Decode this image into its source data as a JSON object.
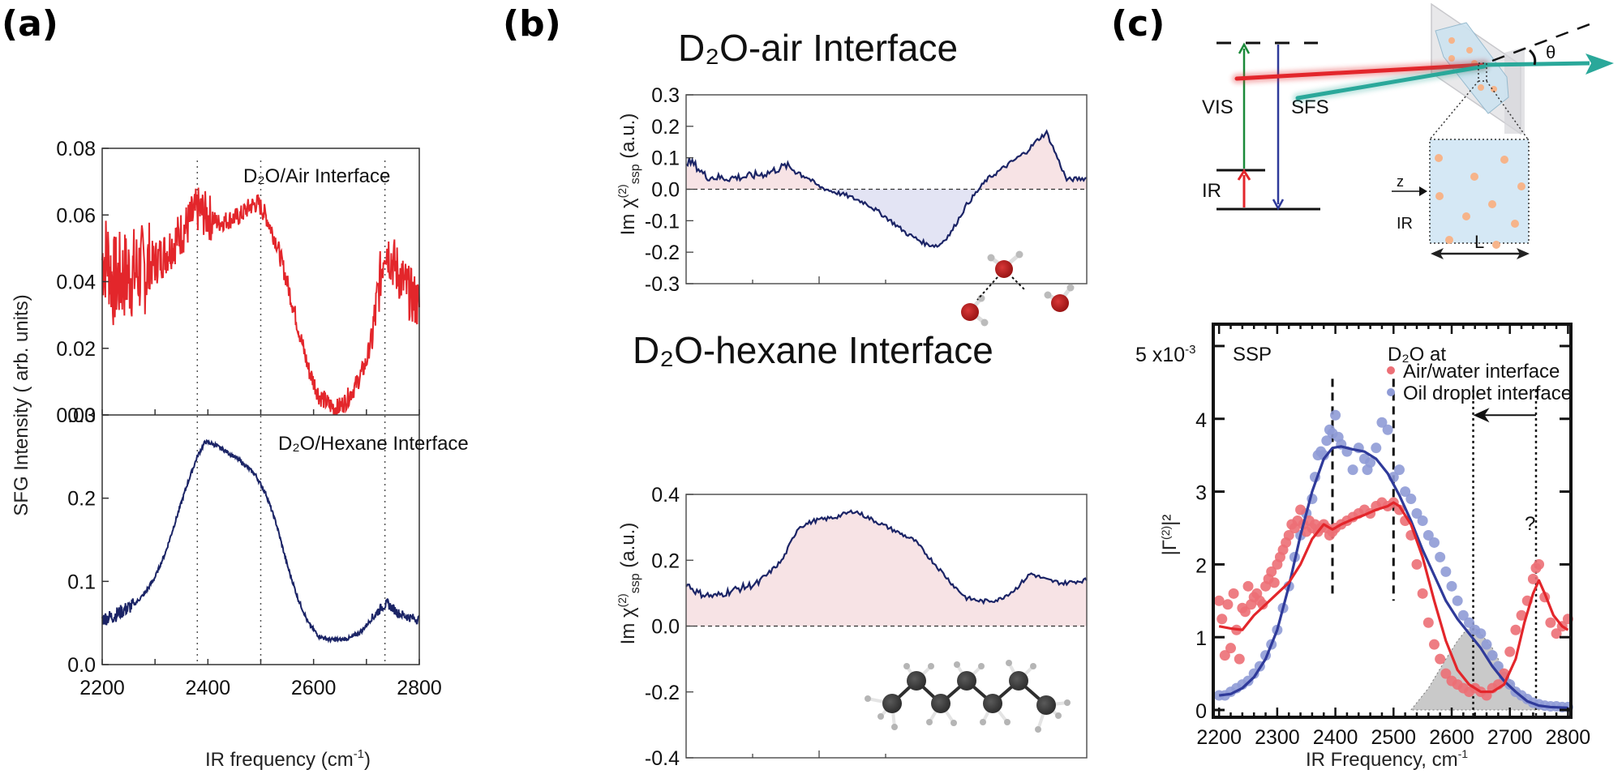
{
  "panel_labels": {
    "a": "(a)",
    "b": "(b)",
    "c": "(c)"
  },
  "colors": {
    "red_series": "#e3262b",
    "navy_series": "#1b2466",
    "pink_fill": "#f7e3e5",
    "lavender_fill": "#e3e4f4",
    "red_points": "#ec6f76",
    "blue_points": "#8f9bd6",
    "red_fit": "#e3262b",
    "blue_fit": "#2f3a9a",
    "gray_area": "#c9c9c9"
  },
  "panel_a": {
    "ylabel": "SFG Intensity ( arb. units)",
    "xlabel": "IR frequency (cm",
    "xlabel_sup": "-1",
    "xlabel_close": ")",
    "x_ticks": [
      "2200",
      "2400",
      "2600",
      "2800"
    ],
    "top": {
      "annotation": "D₂O/Air Interface",
      "y_ticks": [
        "0.00",
        "0.02",
        "0.04",
        "0.06",
        "0.08"
      ]
    },
    "bottom": {
      "annotation": "D₂O/Hexane Interface",
      "y_ticks": [
        "0.0",
        "0.1",
        "0.2",
        "0.3"
      ]
    }
  },
  "panel_b": {
    "ylabel_prefix": "Im χ",
    "ylabel_sup": "(2)",
    "ylabel_sub": "ssp",
    "ylabel_suffix": " (a.u.)",
    "top": {
      "title": "D₂O-air  Interface",
      "y_ticks": [
        "0.3",
        "0.2",
        "0.1",
        "0.0",
        "-0.1",
        "-0.2",
        "-0.3"
      ]
    },
    "bottom": {
      "title": "D₂O-hexane  Interface",
      "y_ticks": [
        "0.4",
        "0.2",
        "0.0",
        "-0.2",
        "-0.4"
      ]
    },
    "molecule_top": "water-molecules-illustration",
    "molecule_bottom": "hexane-molecule-illustration"
  },
  "panel_c": {
    "energy_diagram": {
      "vis": "VIS",
      "sfs": "SFS",
      "ir": "IR"
    },
    "setup": {
      "theta": "θ",
      "z": "z",
      "ir": "IR",
      "length": "L"
    },
    "plot": {
      "polarization": "SSP",
      "legend_title": "D₂O at",
      "legend": [
        "Air/water interface",
        "Oil droplet interface"
      ],
      "y_scale": "5 x10",
      "y_scale_sup": "-3",
      "y_ticks": [
        "0",
        "1",
        "2",
        "3",
        "4"
      ],
      "x_ticks": [
        "2200",
        "2300",
        "2400",
        "2500",
        "2600",
        "2700",
        "2800"
      ],
      "xlabel": "IR Frequency, cm",
      "xlabel_sup": "-1",
      "ylabel": "|Γ",
      "ylabel_sup": "(2)",
      "ylabel_end": "|²",
      "question": "?"
    }
  },
  "chart_data": [
    {
      "id": "a-top",
      "type": "line",
      "title": "D₂O/Air Interface",
      "xlabel": "IR frequency (cm-1)",
      "ylabel": "SFG Intensity (arb. units)",
      "xlim": [
        2200,
        2800
      ],
      "ylim": [
        0.0,
        0.08
      ],
      "vlines": [
        2380,
        2500,
        2735
      ],
      "series": [
        {
          "name": "D2O/Air",
          "color": "#e3262b",
          "noise": 0.006,
          "x": [
            2200,
            2210,
            2220,
            2240,
            2260,
            2280,
            2300,
            2320,
            2340,
            2360,
            2380,
            2400,
            2420,
            2440,
            2460,
            2480,
            2495,
            2510,
            2530,
            2550,
            2570,
            2590,
            2610,
            2630,
            2645,
            2660,
            2680,
            2700,
            2715,
            2725,
            2735,
            2745,
            2760,
            2780,
            2800
          ],
          "y": [
            0.047,
            0.048,
            0.04,
            0.042,
            0.043,
            0.044,
            0.046,
            0.049,
            0.053,
            0.057,
            0.062,
            0.06,
            0.058,
            0.059,
            0.06,
            0.063,
            0.064,
            0.06,
            0.052,
            0.04,
            0.027,
            0.014,
            0.006,
            0.003,
            0.002,
            0.004,
            0.009,
            0.016,
            0.028,
            0.04,
            0.052,
            0.048,
            0.043,
            0.037,
            0.033
          ]
        }
      ]
    },
    {
      "id": "a-bottom",
      "type": "line",
      "title": "D₂O/Hexane Interface",
      "xlim": [
        2200,
        2800
      ],
      "ylim": [
        0.0,
        0.3
      ],
      "vlines": [
        2380,
        2500,
        2735
      ],
      "series": [
        {
          "name": "D2O/Hexane",
          "color": "#1b2466",
          "noise": 0.004,
          "x": [
            2200,
            2220,
            2240,
            2260,
            2280,
            2300,
            2320,
            2340,
            2360,
            2380,
            2395,
            2410,
            2430,
            2450,
            2470,
            2490,
            2510,
            2530,
            2550,
            2570,
            2590,
            2610,
            2630,
            2650,
            2670,
            2690,
            2710,
            2730,
            2740,
            2760,
            2780,
            2800
          ],
          "y": [
            0.055,
            0.058,
            0.065,
            0.072,
            0.085,
            0.105,
            0.135,
            0.175,
            0.215,
            0.25,
            0.268,
            0.265,
            0.258,
            0.25,
            0.24,
            0.228,
            0.205,
            0.168,
            0.12,
            0.08,
            0.05,
            0.034,
            0.03,
            0.03,
            0.032,
            0.04,
            0.055,
            0.07,
            0.073,
            0.062,
            0.057,
            0.054
          ]
        }
      ]
    },
    {
      "id": "b-top",
      "type": "area",
      "title": "D₂O-air Interface",
      "ylabel": "Im χ(2) ssp (a.u.)",
      "ylim": [
        -0.3,
        0.3
      ],
      "xlim": [
        0,
        1
      ],
      "series": [
        {
          "name": "Im chi2 D2O-air",
          "color": "#1b2466",
          "noise": 0.01,
          "x": [
            0.0,
            0.02,
            0.05,
            0.1,
            0.15,
            0.2,
            0.25,
            0.3,
            0.33,
            0.36,
            0.4,
            0.45,
            0.5,
            0.55,
            0.6,
            0.63,
            0.66,
            0.7,
            0.75,
            0.8,
            0.85,
            0.88,
            0.9,
            0.92,
            0.95,
            1.0
          ],
          "y": [
            0.09,
            0.08,
            0.04,
            0.035,
            0.04,
            0.05,
            0.075,
            0.04,
            0.01,
            -0.005,
            -0.02,
            -0.045,
            -0.09,
            -0.14,
            -0.175,
            -0.18,
            -0.14,
            -0.05,
            0.03,
            0.075,
            0.12,
            0.16,
            0.18,
            0.12,
            0.03,
            0.035
          ]
        }
      ]
    },
    {
      "id": "b-bottom",
      "type": "area",
      "title": "D₂O-hexane Interface",
      "ylabel": "Im χ(2) ssp (a.u.)",
      "ylim": [
        -0.4,
        0.4
      ],
      "xlim": [
        0,
        1
      ],
      "series": [
        {
          "name": "Im chi2 D2O-hexane",
          "color": "#1b2466",
          "noise": 0.008,
          "x": [
            0.0,
            0.03,
            0.07,
            0.12,
            0.18,
            0.24,
            0.28,
            0.32,
            0.37,
            0.42,
            0.47,
            0.52,
            0.57,
            0.62,
            0.67,
            0.7,
            0.74,
            0.78,
            0.82,
            0.86,
            0.9,
            0.94,
            1.0
          ],
          "y": [
            0.13,
            0.1,
            0.09,
            0.11,
            0.13,
            0.2,
            0.3,
            0.32,
            0.33,
            0.35,
            0.32,
            0.29,
            0.26,
            0.19,
            0.12,
            0.085,
            0.075,
            0.08,
            0.11,
            0.16,
            0.14,
            0.13,
            0.14
          ]
        }
      ]
    },
    {
      "id": "c",
      "type": "scatter",
      "xlabel": "IR Frequency, cm-1",
      "ylabel": "|Γ(2)|²",
      "xlim": [
        2190,
        2805
      ],
      "ylim": [
        -0.1,
        5.3
      ],
      "y_units": "x10^-3",
      "vlines_dashed": [
        2395,
        2500
      ],
      "vlines_dotted": [
        2637,
        2745
      ],
      "arrow": {
        "from": 2745,
        "to": 2637,
        "y": 4.05,
        "label": "?"
      },
      "series": [
        {
          "name": "Air/water interface",
          "color": "#ec6f76",
          "fit_color": "#e3262b",
          "points_x": [
            2200,
            2205,
            2210,
            2215,
            2220,
            2225,
            2230,
            2235,
            2240,
            2245,
            2250,
            2255,
            2260,
            2265,
            2270,
            2275,
            2280,
            2285,
            2290,
            2295,
            2300,
            2305,
            2310,
            2315,
            2320,
            2325,
            2330,
            2335,
            2340,
            2345,
            2350,
            2355,
            2360,
            2365,
            2370,
            2375,
            2380,
            2385,
            2390,
            2395,
            2400,
            2410,
            2420,
            2430,
            2440,
            2450,
            2460,
            2470,
            2480,
            2490,
            2500,
            2510,
            2520,
            2530,
            2540,
            2550,
            2560,
            2570,
            2580,
            2590,
            2600,
            2610,
            2620,
            2630,
            2640,
            2650,
            2660,
            2670,
            2680,
            2690,
            2700,
            2710,
            2720,
            2730,
            2740,
            2745,
            2750,
            2760,
            2770,
            2780,
            2790,
            2800
          ],
          "points_y": [
            1.5,
            1.25,
            0.75,
            1.45,
            0.85,
            1.6,
            1.1,
            0.7,
            1.4,
            1.35,
            1.7,
            1.45,
            1.55,
            1.6,
            1.5,
            1.45,
            1.7,
            1.8,
            1.9,
            1.75,
            2.0,
            2.1,
            2.2,
            2.3,
            2.4,
            2.55,
            2.5,
            2.6,
            2.75,
            2.55,
            2.45,
            2.6,
            2.5,
            2.55,
            2.45,
            2.5,
            2.55,
            2.5,
            2.4,
            2.45,
            2.5,
            2.55,
            2.6,
            2.65,
            2.7,
            2.75,
            2.7,
            2.8,
            2.85,
            2.8,
            2.85,
            2.75,
            2.6,
            2.4,
            2.0,
            1.6,
            1.2,
            0.9,
            0.7,
            0.5,
            0.4,
            0.35,
            0.3,
            0.25,
            0.3,
            0.25,
            0.2,
            0.3,
            0.35,
            0.5,
            0.8,
            1.1,
            1.3,
            1.5,
            1.8,
            1.95,
            2.0,
            1.55,
            1.2,
            1.05,
            1.15,
            1.25
          ],
          "fit_x": [
            2200,
            2220,
            2240,
            2260,
            2280,
            2300,
            2320,
            2340,
            2360,
            2380,
            2395,
            2410,
            2430,
            2450,
            2470,
            2490,
            2500,
            2510,
            2530,
            2550,
            2570,
            2590,
            2610,
            2630,
            2650,
            2670,
            2690,
            2710,
            2725,
            2740,
            2750,
            2760,
            2775,
            2790,
            2800
          ],
          "fit_y": [
            1.15,
            1.12,
            1.1,
            1.3,
            1.45,
            1.6,
            1.75,
            2.0,
            2.35,
            2.55,
            2.48,
            2.55,
            2.62,
            2.68,
            2.75,
            2.8,
            2.85,
            2.8,
            2.55,
            2.1,
            1.5,
            0.95,
            0.55,
            0.35,
            0.25,
            0.25,
            0.35,
            0.7,
            1.2,
            1.6,
            1.78,
            1.6,
            1.3,
            1.15,
            1.1
          ]
        },
        {
          "name": "Oil droplet interface",
          "color": "#8f9bd6",
          "fit_color": "#2f3a9a",
          "points_x": [
            2200,
            2210,
            2220,
            2230,
            2240,
            2250,
            2260,
            2270,
            2280,
            2290,
            2300,
            2310,
            2320,
            2330,
            2340,
            2350,
            2360,
            2365,
            2370,
            2375,
            2380,
            2385,
            2390,
            2395,
            2400,
            2405,
            2410,
            2420,
            2430,
            2440,
            2450,
            2455,
            2460,
            2470,
            2480,
            2490,
            2500,
            2510,
            2520,
            2530,
            2540,
            2550,
            2560,
            2570,
            2580,
            2590,
            2600,
            2610,
            2620,
            2630,
            2640,
            2650,
            2660,
            2670,
            2680,
            2690,
            2700,
            2710,
            2720,
            2730,
            2740,
            2750,
            2760,
            2770,
            2780,
            2790,
            2800
          ],
          "points_y": [
            0.2,
            0.2,
            0.25,
            0.3,
            0.35,
            0.4,
            0.5,
            0.6,
            0.75,
            0.9,
            1.1,
            1.4,
            1.7,
            2.1,
            2.4,
            2.7,
            2.9,
            3.2,
            3.5,
            3.55,
            3.5,
            3.7,
            3.85,
            3.8,
            4.05,
            3.75,
            3.65,
            3.55,
            3.3,
            3.6,
            3.45,
            3.3,
            3.4,
            3.6,
            3.95,
            3.85,
            3.2,
            3.3,
            3.0,
            2.9,
            2.7,
            2.6,
            2.4,
            2.3,
            2.1,
            1.9,
            1.7,
            1.5,
            1.3,
            1.2,
            1.1,
            1.05,
            0.9,
            0.75,
            0.6,
            0.45,
            0.35,
            0.25,
            0.2,
            0.15,
            0.1,
            0.08,
            0.06,
            0.05,
            0.05,
            0.04,
            0.04
          ],
          "fit_x": [
            2200,
            2220,
            2240,
            2260,
            2280,
            2300,
            2320,
            2340,
            2360,
            2380,
            2395,
            2410,
            2430,
            2450,
            2470,
            2490,
            2510,
            2530,
            2550,
            2570,
            2590,
            2610,
            2630,
            2650,
            2670,
            2690,
            2710,
            2730,
            2750,
            2770,
            2800
          ],
          "fit_y": [
            0.2,
            0.22,
            0.3,
            0.45,
            0.7,
            1.1,
            1.7,
            2.4,
            3.0,
            3.45,
            3.6,
            3.62,
            3.58,
            3.55,
            3.45,
            3.25,
            2.95,
            2.6,
            2.2,
            1.85,
            1.5,
            1.25,
            1.05,
            0.85,
            0.6,
            0.4,
            0.25,
            0.12,
            0.06,
            0.04,
            0.03
          ]
        },
        {
          "name": "shaded-region",
          "color": "#c9c9c9",
          "fit_x": [
            2530,
            2560,
            2590,
            2610,
            2625,
            2637,
            2650,
            2670,
            2690,
            2710,
            2730,
            2750,
            2760
          ],
          "fit_y": [
            0.0,
            0.3,
            0.7,
            0.95,
            1.1,
            1.15,
            1.05,
            0.85,
            0.55,
            0.3,
            0.12,
            0.03,
            0.0
          ]
        }
      ]
    }
  ]
}
